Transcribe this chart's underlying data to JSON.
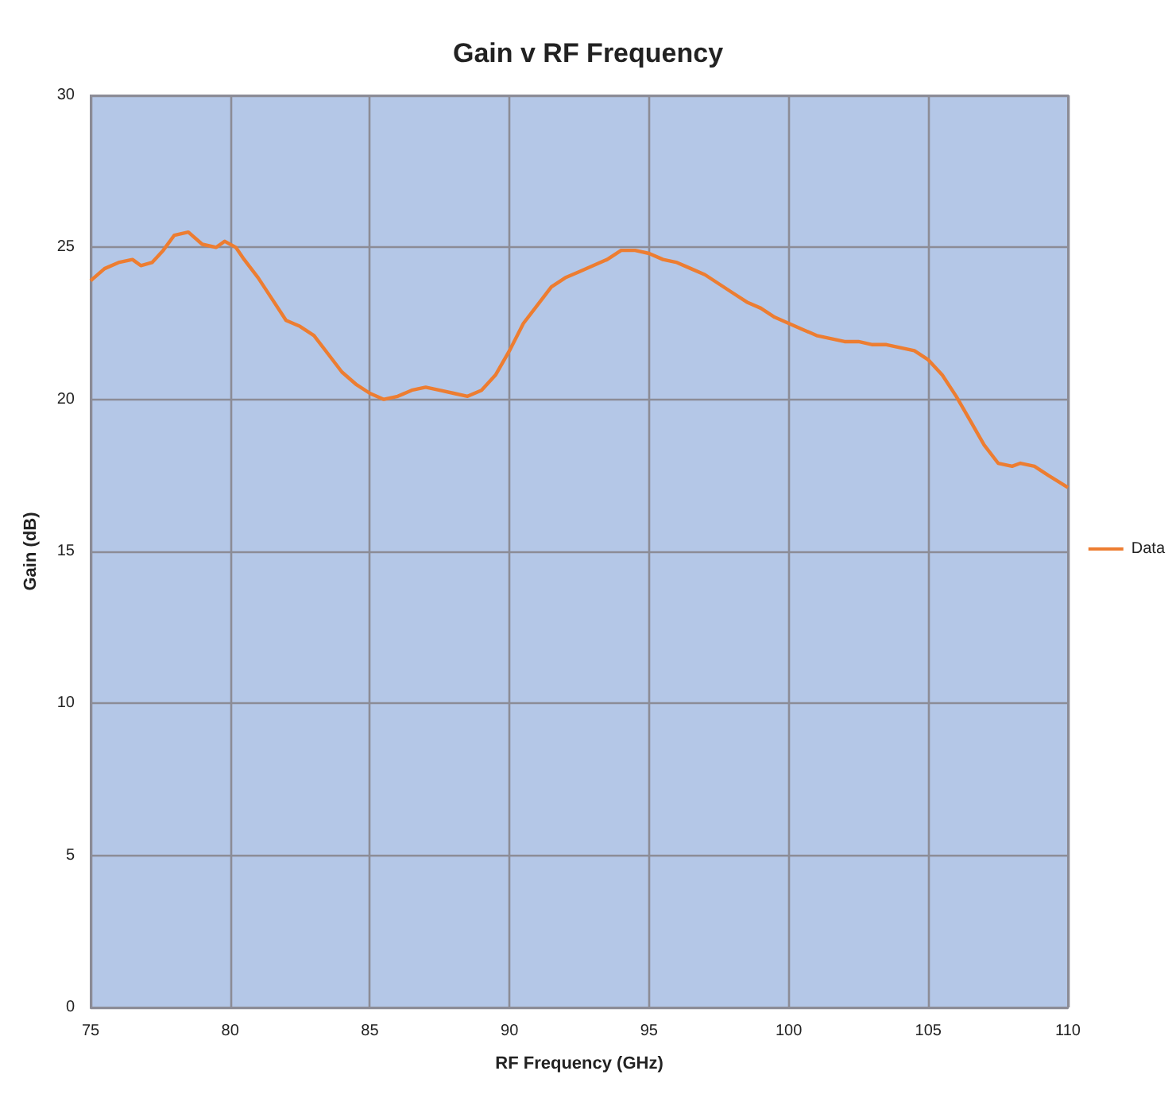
{
  "chart_data": {
    "type": "line",
    "title": "Gain v RF Frequency",
    "xlabel": "RF Frequency (GHz)",
    "ylabel": "Gain (dB)",
    "x": [
      75,
      75.5,
      76,
      76.5,
      76.8,
      77.2,
      77.6,
      78,
      78.5,
      79,
      79.5,
      79.8,
      80.2,
      80.5,
      81,
      81.5,
      82,
      82.5,
      83,
      83.5,
      84,
      84.5,
      85,
      85.5,
      86,
      86.5,
      87,
      87.5,
      88,
      88.5,
      89,
      89.5,
      90,
      90.5,
      91,
      91.5,
      92,
      92.5,
      93,
      93.5,
      94,
      94.5,
      95,
      95.5,
      96,
      96.5,
      97,
      97.5,
      98,
      98.5,
      99,
      99.5,
      100,
      100.5,
      101,
      101.5,
      102,
      102.5,
      103,
      103.5,
      104,
      104.5,
      105,
      105.5,
      106,
      106.5,
      107,
      107.5,
      108,
      108.3,
      108.8,
      109.3,
      110
    ],
    "series": [
      {
        "name": "Data",
        "color": "#ed7d31",
        "values": [
          23.9,
          24.3,
          24.5,
          24.6,
          24.4,
          24.5,
          24.9,
          25.4,
          25.5,
          25.1,
          25.0,
          25.2,
          25.0,
          24.6,
          24.0,
          23.3,
          22.6,
          22.4,
          22.1,
          21.5,
          20.9,
          20.5,
          20.2,
          20.0,
          20.1,
          20.3,
          20.4,
          20.3,
          20.2,
          20.1,
          20.3,
          20.8,
          21.6,
          22.5,
          23.1,
          23.7,
          24.0,
          24.2,
          24.4,
          24.6,
          24.9,
          24.9,
          24.8,
          24.6,
          24.5,
          24.3,
          24.1,
          23.8,
          23.5,
          23.2,
          23.0,
          22.7,
          22.5,
          22.3,
          22.1,
          22.0,
          21.9,
          21.9,
          21.8,
          21.8,
          21.7,
          21.6,
          21.3,
          20.8,
          20.1,
          19.3,
          18.5,
          17.9,
          17.8,
          17.9,
          17.8,
          17.5,
          17.1
        ]
      }
    ],
    "xlim": [
      75,
      110
    ],
    "xticks": [
      75,
      80,
      85,
      90,
      95,
      100,
      105,
      110
    ],
    "ylim": [
      0,
      30
    ],
    "yticks": [
      0,
      5,
      10,
      15,
      20,
      25,
      30
    ],
    "grid": true,
    "legend": "right",
    "marker": "none",
    "line_style": "solid"
  }
}
